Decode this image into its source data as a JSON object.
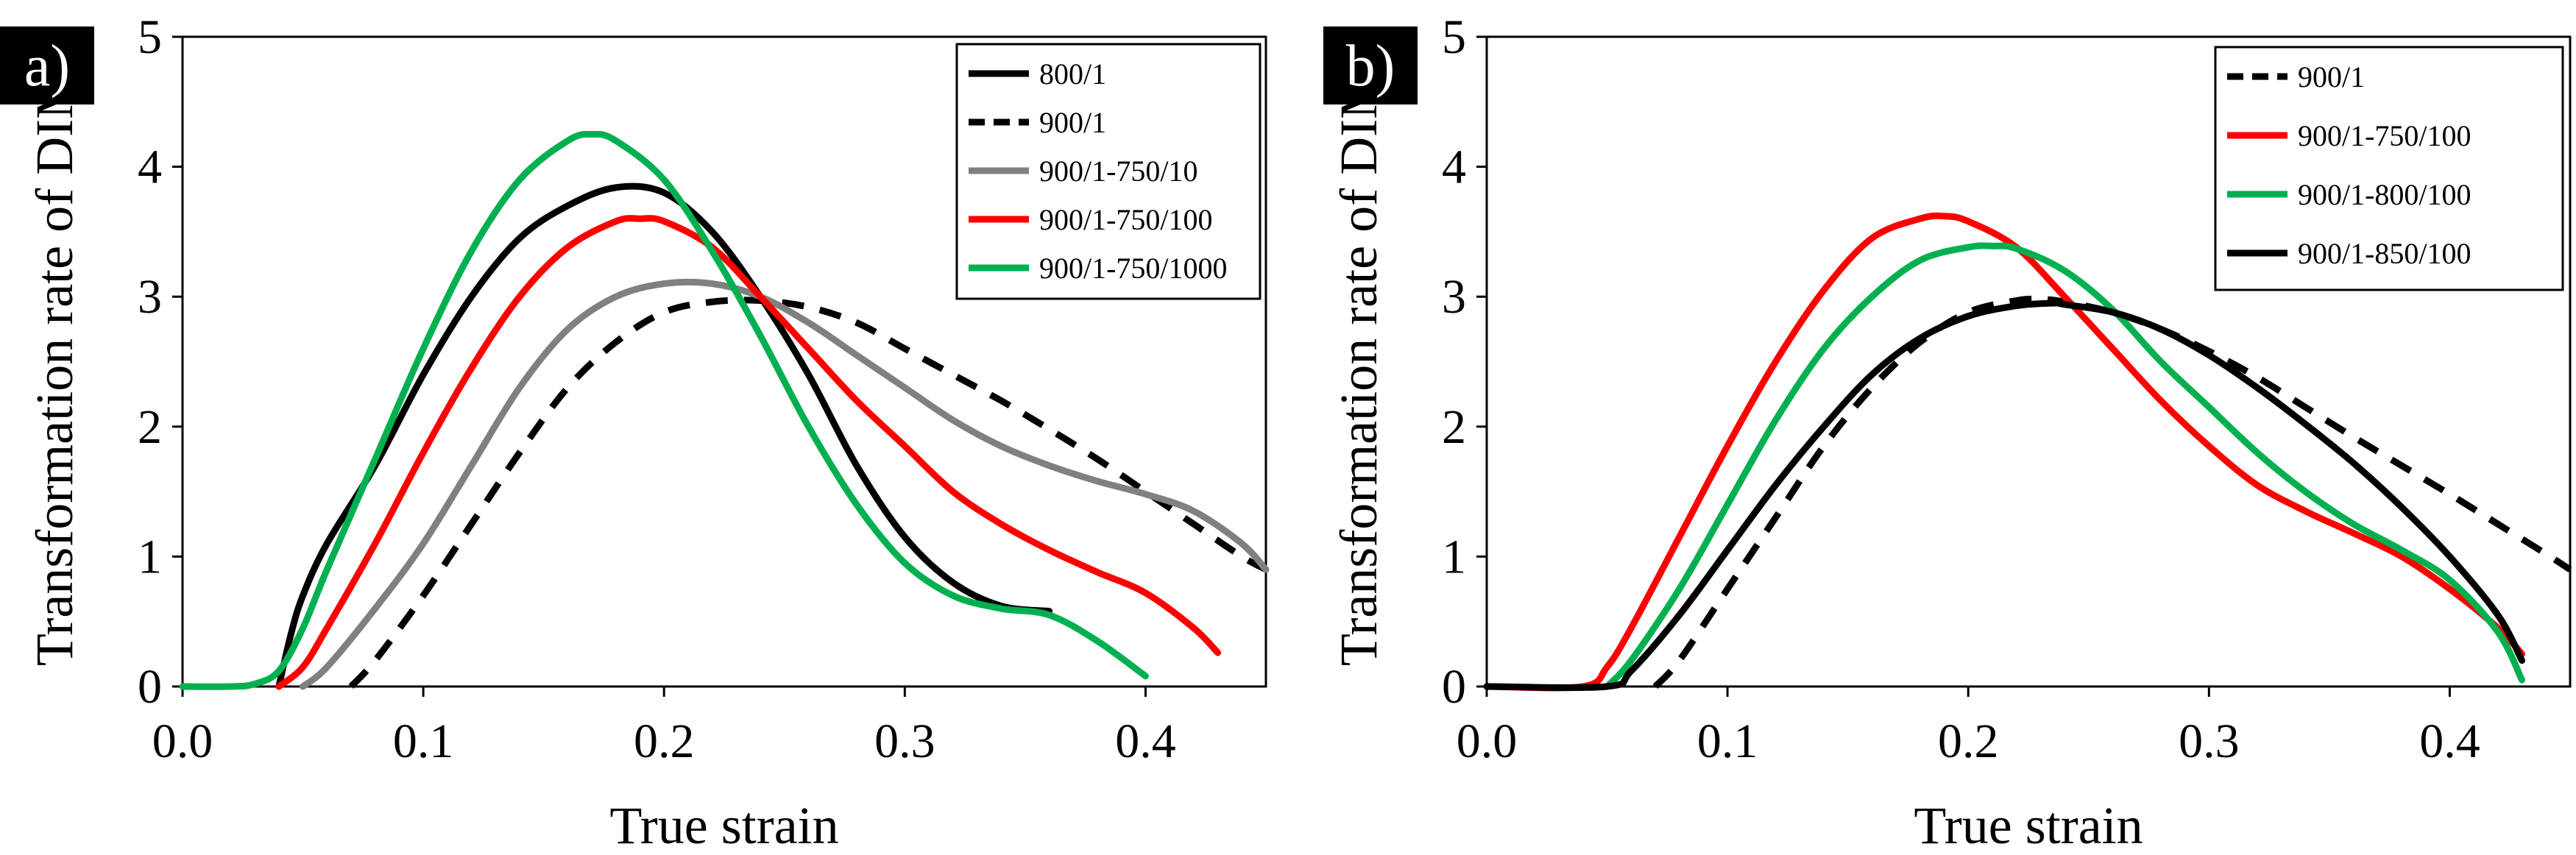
{
  "chart_data": [
    {
      "type": "line",
      "panel_label": "a)",
      "xlabel": "True strain",
      "ylabel": "Transformation rate of DIM",
      "xlim": [
        0,
        0.45
      ],
      "ylim": [
        0,
        5
      ],
      "xticks": [
        0,
        0.1,
        0.2,
        0.3,
        0.4
      ],
      "yticks": [
        0,
        1,
        2,
        3,
        4,
        5
      ],
      "xtick_labels": [
        "0.0",
        "0.1",
        "0.2",
        "0.3",
        "0.4"
      ],
      "ytick_labels": [
        "0",
        "1",
        "2",
        "3",
        "4",
        "5"
      ],
      "legend_position": "top-right",
      "series": [
        {
          "name": "800/1",
          "color": "#000000",
          "dash": "solid",
          "x": [
            0.04,
            0.045,
            0.05,
            0.06,
            0.08,
            0.1,
            0.12,
            0.14,
            0.16,
            0.18,
            0.2,
            0.22,
            0.24,
            0.26,
            0.28,
            0.3,
            0.32,
            0.34,
            0.36
          ],
          "y": [
            0.0,
            0.4,
            0.7,
            1.1,
            1.7,
            2.4,
            3.0,
            3.45,
            3.7,
            3.84,
            3.8,
            3.5,
            3.0,
            2.4,
            1.7,
            1.15,
            0.8,
            0.62,
            0.58
          ]
        },
        {
          "name": "900/1",
          "color": "#000000",
          "dash": "dashed",
          "x": [
            0.07,
            0.08,
            0.1,
            0.12,
            0.14,
            0.16,
            0.18,
            0.2,
            0.22,
            0.24,
            0.26,
            0.28,
            0.3,
            0.32,
            0.34,
            0.36,
            0.38,
            0.4,
            0.42,
            0.44,
            0.45
          ],
          "y": [
            0.0,
            0.2,
            0.7,
            1.25,
            1.8,
            2.3,
            2.65,
            2.88,
            2.96,
            2.97,
            2.92,
            2.8,
            2.6,
            2.4,
            2.2,
            1.98,
            1.75,
            1.5,
            1.25,
            1.0,
            0.9
          ]
        },
        {
          "name": "900/1-750/10",
          "color": "#808080",
          "dash": "solid",
          "x": [
            0.05,
            0.06,
            0.08,
            0.1,
            0.12,
            0.14,
            0.16,
            0.18,
            0.2,
            0.22,
            0.24,
            0.26,
            0.28,
            0.3,
            0.32,
            0.34,
            0.36,
            0.38,
            0.4,
            0.42,
            0.44,
            0.45
          ],
          "y": [
            0.0,
            0.15,
            0.6,
            1.1,
            1.7,
            2.3,
            2.75,
            3.0,
            3.1,
            3.1,
            3.0,
            2.8,
            2.55,
            2.3,
            2.05,
            1.85,
            1.7,
            1.58,
            1.48,
            1.35,
            1.1,
            0.9
          ]
        },
        {
          "name": "900/1-750/100",
          "color": "#ff0000",
          "dash": "solid",
          "x": [
            0.04,
            0.05,
            0.06,
            0.08,
            0.1,
            0.12,
            0.14,
            0.16,
            0.18,
            0.19,
            0.2,
            0.22,
            0.24,
            0.26,
            0.28,
            0.3,
            0.32,
            0.34,
            0.36,
            0.38,
            0.4,
            0.42,
            0.43
          ],
          "y": [
            0.0,
            0.15,
            0.45,
            1.1,
            1.8,
            2.45,
            3.0,
            3.38,
            3.58,
            3.6,
            3.58,
            3.38,
            3.0,
            2.6,
            2.2,
            1.85,
            1.5,
            1.25,
            1.05,
            0.88,
            0.72,
            0.45,
            0.26
          ]
        },
        {
          "name": "900/1-750/1000",
          "color": "#00b050",
          "dash": "solid",
          "x": [
            0.0,
            0.02,
            0.03,
            0.04,
            0.05,
            0.06,
            0.08,
            0.1,
            0.12,
            0.14,
            0.16,
            0.17,
            0.18,
            0.2,
            0.22,
            0.24,
            0.26,
            0.28,
            0.3,
            0.32,
            0.34,
            0.36,
            0.38,
            0.4
          ],
          "y": [
            0.0,
            0.0,
            0.02,
            0.12,
            0.45,
            0.9,
            1.75,
            2.6,
            3.35,
            3.9,
            4.2,
            4.25,
            4.2,
            3.9,
            3.35,
            2.7,
            2.0,
            1.4,
            0.95,
            0.7,
            0.6,
            0.55,
            0.35,
            0.08
          ]
        }
      ]
    },
    {
      "type": "line",
      "panel_label": "b)",
      "xlabel": "True strain",
      "ylabel": "Transformation rate of DIM",
      "xlim": [
        0,
        0.45
      ],
      "ylim": [
        0,
        5
      ],
      "xticks": [
        0,
        0.1,
        0.2,
        0.3,
        0.4
      ],
      "yticks": [
        0,
        1,
        2,
        3,
        4,
        5
      ],
      "xtick_labels": [
        "0.0",
        "0.1",
        "0.2",
        "0.3",
        "0.4"
      ],
      "ytick_labels": [
        "0",
        "1",
        "2",
        "3",
        "4",
        "5"
      ],
      "legend_position": "top-right",
      "series": [
        {
          "name": "900/1",
          "color": "#000000",
          "dash": "dashed",
          "x": [
            0.07,
            0.08,
            0.1,
            0.12,
            0.14,
            0.16,
            0.18,
            0.2,
            0.22,
            0.23,
            0.24,
            0.26,
            0.28,
            0.3,
            0.32,
            0.34,
            0.36,
            0.38,
            0.4,
            0.42,
            0.44,
            0.45
          ],
          "y": [
            0.0,
            0.2,
            0.75,
            1.3,
            1.85,
            2.3,
            2.65,
            2.88,
            2.97,
            2.98,
            2.96,
            2.88,
            2.75,
            2.58,
            2.38,
            2.15,
            1.92,
            1.7,
            1.48,
            1.25,
            1.02,
            0.9
          ]
        },
        {
          "name": "900/1-750/100",
          "color": "#ff0000",
          "dash": "solid",
          "x": [
            0.0,
            0.04,
            0.05,
            0.06,
            0.08,
            0.1,
            0.12,
            0.14,
            0.16,
            0.18,
            0.19,
            0.2,
            0.22,
            0.24,
            0.26,
            0.28,
            0.3,
            0.32,
            0.34,
            0.36,
            0.38,
            0.4,
            0.42,
            0.43
          ],
          "y": [
            0.0,
            0.0,
            0.15,
            0.45,
            1.15,
            1.85,
            2.5,
            3.05,
            3.45,
            3.6,
            3.62,
            3.58,
            3.38,
            3.0,
            2.6,
            2.2,
            1.85,
            1.55,
            1.35,
            1.18,
            1.0,
            0.75,
            0.45,
            0.25
          ]
        },
        {
          "name": "900/1-800/100",
          "color": "#00b050",
          "dash": "solid",
          "x": [
            0.05,
            0.06,
            0.08,
            0.1,
            0.12,
            0.14,
            0.16,
            0.18,
            0.2,
            0.21,
            0.22,
            0.24,
            0.26,
            0.28,
            0.3,
            0.32,
            0.34,
            0.36,
            0.38,
            0.4,
            0.42,
            0.43
          ],
          "y": [
            0.0,
            0.2,
            0.75,
            1.4,
            2.05,
            2.6,
            3.0,
            3.28,
            3.38,
            3.39,
            3.37,
            3.2,
            2.9,
            2.5,
            2.15,
            1.8,
            1.5,
            1.25,
            1.05,
            0.82,
            0.42,
            0.05
          ]
        },
        {
          "name": "900/1-850/100",
          "color": "#000000",
          "dash": "solid",
          "x": [
            0.0,
            0.05,
            0.06,
            0.08,
            0.1,
            0.12,
            0.14,
            0.16,
            0.18,
            0.2,
            0.22,
            0.235,
            0.24,
            0.26,
            0.28,
            0.3,
            0.32,
            0.34,
            0.36,
            0.38,
            0.4,
            0.42,
            0.43
          ],
          "y": [
            0.0,
            0.0,
            0.12,
            0.55,
            1.05,
            1.55,
            2.0,
            2.4,
            2.68,
            2.85,
            2.93,
            2.95,
            2.94,
            2.88,
            2.75,
            2.55,
            2.3,
            2.02,
            1.72,
            1.38,
            1.0,
            0.55,
            0.2
          ]
        }
      ]
    }
  ]
}
